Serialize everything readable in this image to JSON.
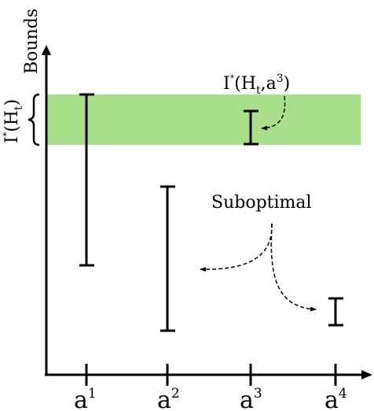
{
  "diagram": {
    "y_axis_label": "Bounds",
    "bracket_label_main": "I",
    "bracket_label_star": "*",
    "bracket_label_paren_open": "(H",
    "bracket_label_sub": "t",
    "bracket_label_paren_close": ")",
    "highlight_label": {
      "main": "I",
      "star": "*",
      "open": "(H",
      "sub": "t",
      "comma_a": ",a",
      "sup": "3",
      "close": ")"
    },
    "suboptimal_label": "Suboptimal",
    "band_color": "#a9df8a",
    "ticks": [
      {
        "base": "a",
        "sup": "1"
      },
      {
        "base": "a",
        "sup": "2"
      },
      {
        "base": "a",
        "sup": "3"
      },
      {
        "base": "a",
        "sup": "4"
      }
    ]
  }
}
